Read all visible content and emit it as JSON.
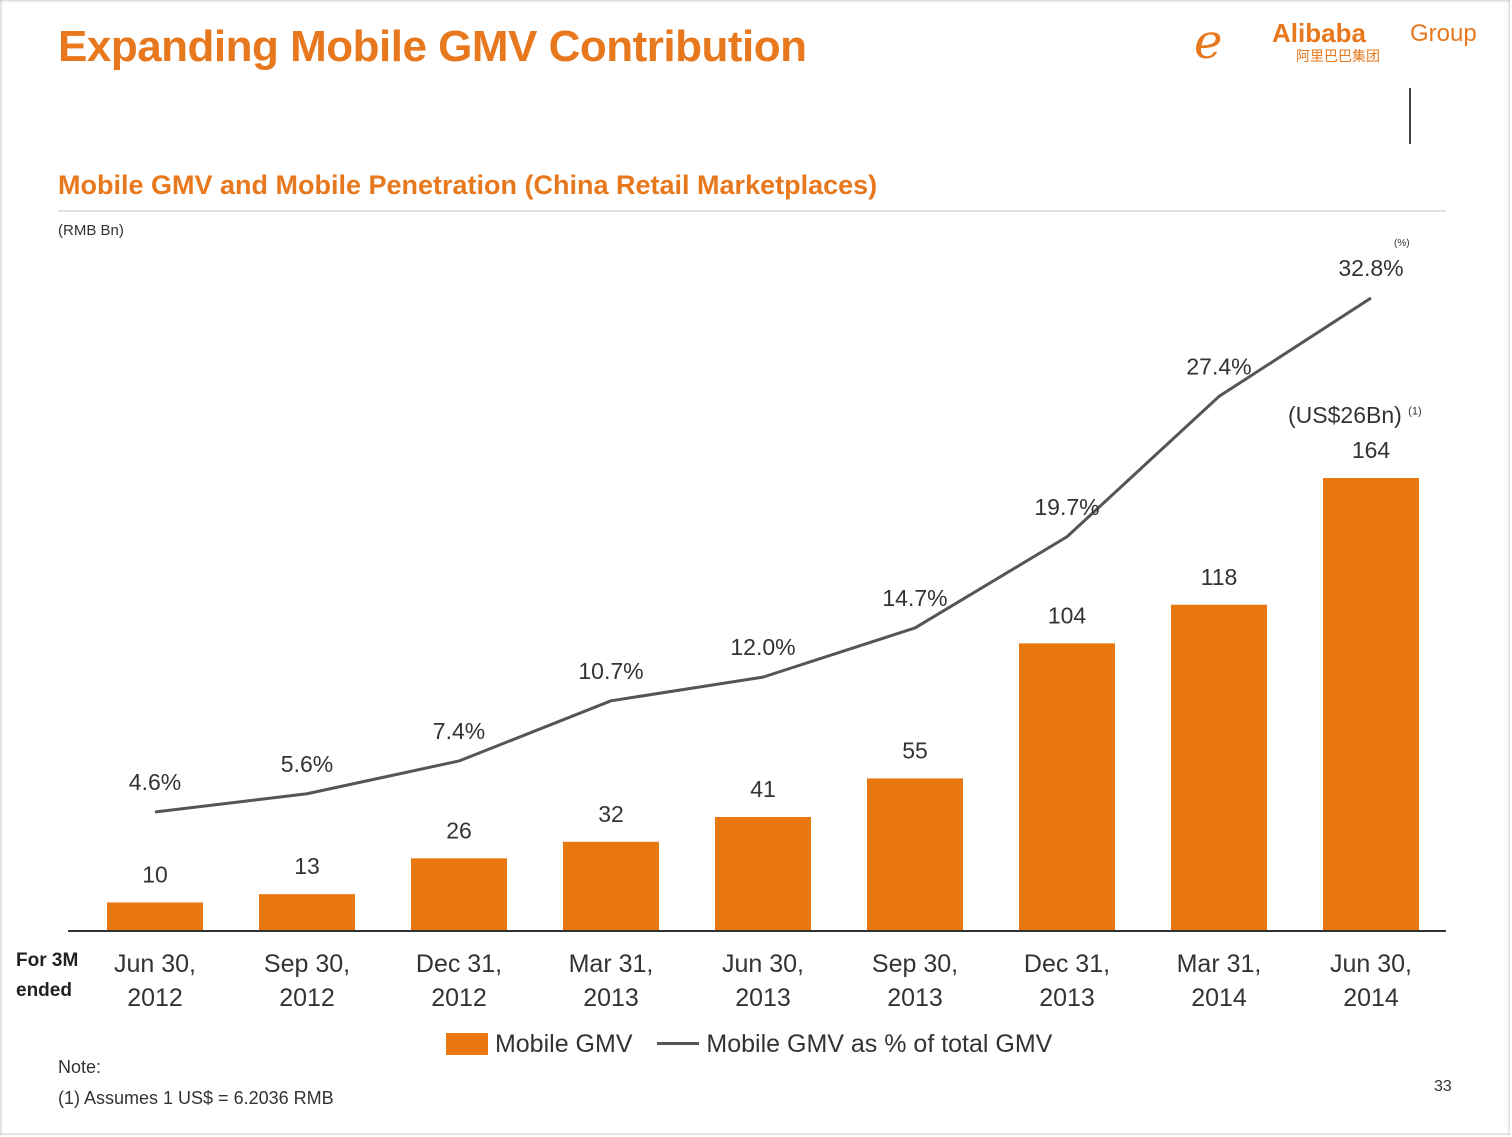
{
  "header": {
    "title": "Expanding Mobile GMV Contribution",
    "logo_name": "Alibaba",
    "logo_group": "Group",
    "logo_cn": "阿里巴巴集团"
  },
  "subtitle": "Mobile GMV and Mobile Penetration (China Retail Marketplaces)",
  "unit_left": "(RMB Bn)",
  "unit_right": "(%)",
  "footnote_ref": "(US$26Bn)",
  "footnote_mark": "(1)",
  "end_label": [
    "For 3M",
    "ended"
  ],
  "legend": {
    "bar": "Mobile GMV",
    "line": "Mobile GMV as % of total GMV"
  },
  "note": {
    "heading": "Note:",
    "item": "(1)    Assumes 1 US$ = 6.2036 RMB"
  },
  "page_number": "33",
  "colors": {
    "accent": "#e8781d",
    "bar": "#e8780e",
    "line": "#555555"
  },
  "chart_data": {
    "type": "bar",
    "categories": [
      [
        "Jun 30,",
        "2012"
      ],
      [
        "Sep 30,",
        "2012"
      ],
      [
        "Dec 31,",
        "2012"
      ],
      [
        "Mar 31,",
        "2013"
      ],
      [
        "Jun 30,",
        "2013"
      ],
      [
        "Sep 30,",
        "2013"
      ],
      [
        "Dec 31,",
        "2013"
      ],
      [
        "Mar 31,",
        "2014"
      ],
      [
        "Jun 30,",
        "2014"
      ]
    ],
    "series": [
      {
        "name": "Mobile GMV",
        "type": "bar",
        "axis": "left",
        "values": [
          10,
          13,
          26,
          32,
          41,
          55,
          104,
          118,
          164
        ],
        "labels": [
          "10",
          "13",
          "26",
          "32",
          "41",
          "55",
          "104",
          "118",
          "164"
        ]
      },
      {
        "name": "Mobile GMV as % of total GMV",
        "type": "line",
        "axis": "right",
        "values": [
          4.6,
          5.6,
          7.4,
          10.7,
          12.0,
          14.7,
          19.7,
          27.4,
          32.8
        ],
        "labels": [
          "4.6%",
          "5.6%",
          "7.4%",
          "10.7%",
          "12.0%",
          "14.7%",
          "19.7%",
          "27.4%",
          "32.8%"
        ]
      }
    ],
    "ylabel_left": "(RMB Bn)",
    "ylabel_right": "(%)",
    "ylim_left": [
      0,
      170
    ],
    "ylim_right": [
      0,
      35
    ],
    "grid": false,
    "legend_position": "bottom"
  }
}
